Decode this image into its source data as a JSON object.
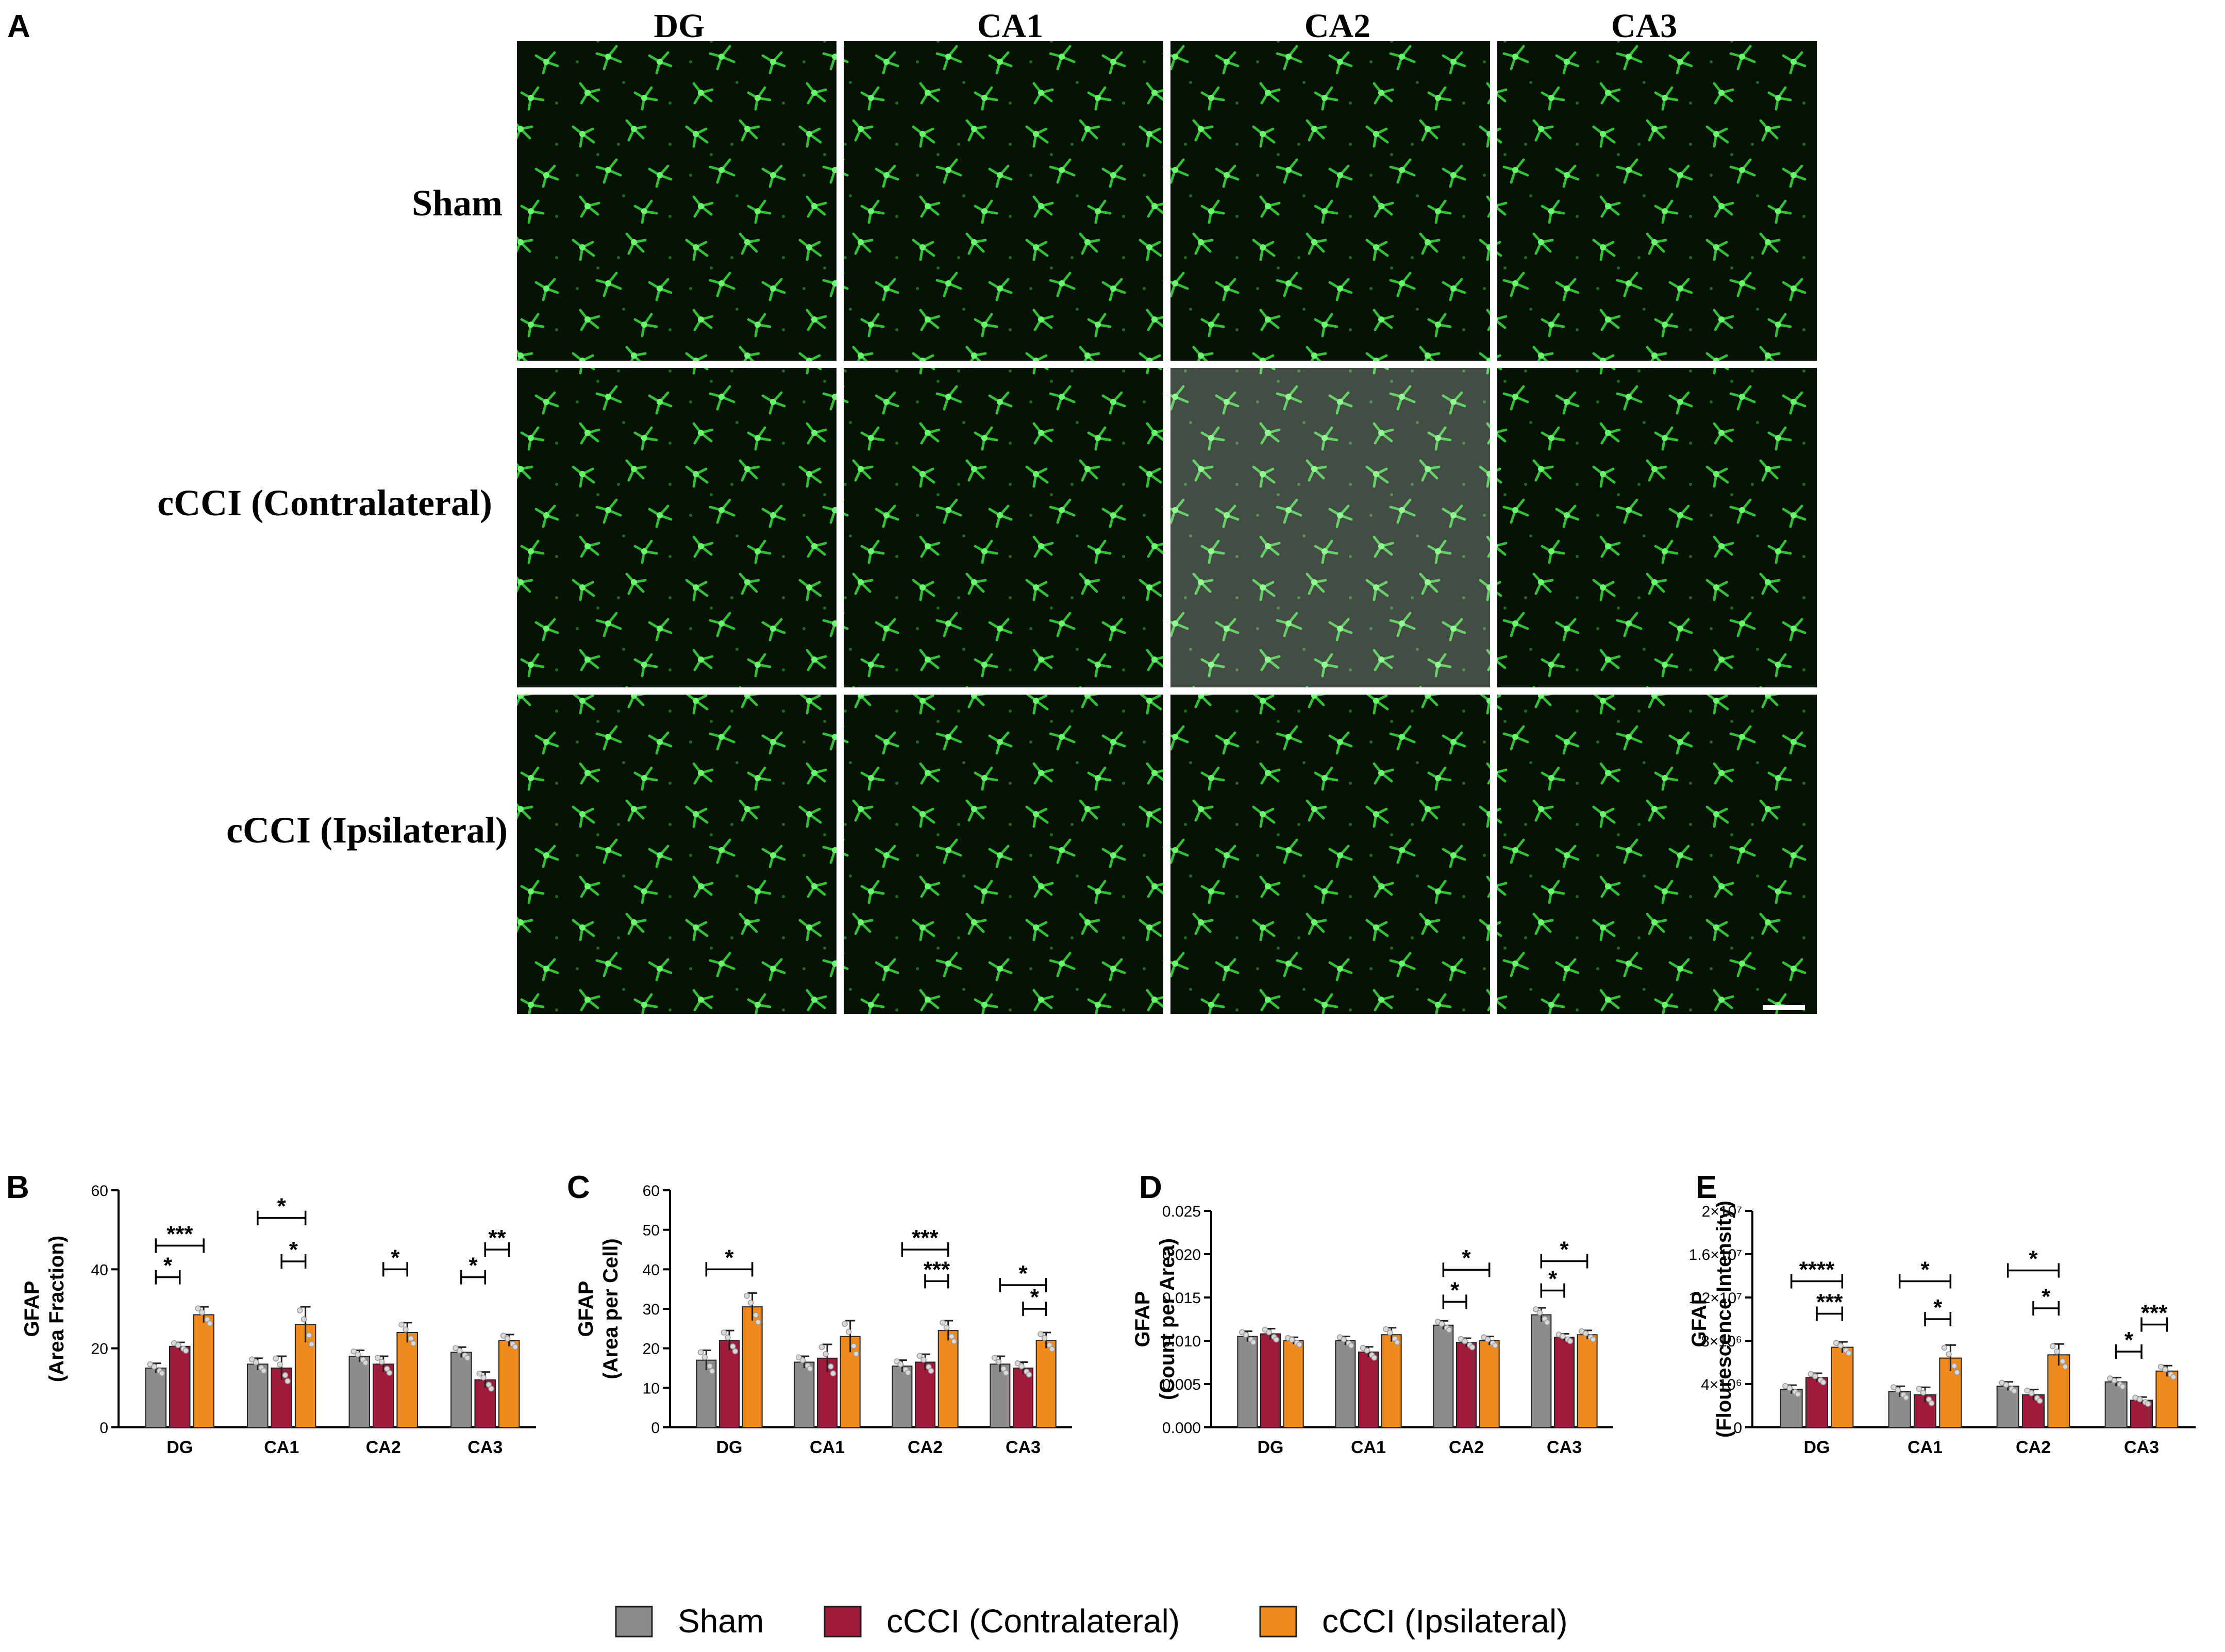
{
  "panel_a": {
    "letter": "A",
    "column_labels": [
      "DG",
      "CA1",
      "CA2",
      "CA3"
    ],
    "row_labels": [
      "Sham",
      "cCCI (Contralateral)",
      "cCCI (Ipsilateral)"
    ]
  },
  "legend": {
    "entries": [
      {
        "name": "Sham",
        "color": "#8c8c8c"
      },
      {
        "name": "cCCI (Contralateral)",
        "color": "#9e1b3c"
      },
      {
        "name": "cCCI (Ipsilateral)",
        "color": "#f08a1c"
      }
    ]
  },
  "colors": {
    "micrograph_bg": "#061206",
    "astrocyte": "#37d33a",
    "error_bar": "#222222"
  },
  "chart_data": [
    {
      "panel": "B",
      "type": "bar",
      "categories": [
        "DG",
        "CA1",
        "CA2",
        "CA3"
      ],
      "ylabel": "GFAP\n(Area Fraction)",
      "ylim": [
        0,
        60
      ],
      "yticks": [
        "0",
        "20",
        "40",
        "60"
      ],
      "series": [
        {
          "name": "Sham",
          "values": [
            15,
            16,
            18,
            19
          ],
          "errors": [
            1.2,
            1.5,
            1.5,
            1.3
          ]
        },
        {
          "name": "cCCI (Contralateral)",
          "values": [
            20.5,
            15,
            16,
            12
          ],
          "errors": [
            1.0,
            3.0,
            2.0,
            2.0
          ]
        },
        {
          "name": "cCCI (Ipsilateral)",
          "values": [
            28.5,
            26,
            24,
            22
          ],
          "errors": [
            2.0,
            4.5,
            2.5,
            1.5
          ]
        }
      ],
      "significance": [
        {
          "group": 0,
          "from": 0,
          "to": 1,
          "label": "*",
          "y": 38
        },
        {
          "group": 0,
          "from": 0,
          "to": 2,
          "label": "***",
          "y": 46
        },
        {
          "group": 1,
          "from": 0,
          "to": 2,
          "label": "*",
          "y": 53
        },
        {
          "group": 1,
          "from": 1,
          "to": 2,
          "label": "*",
          "y": 42
        },
        {
          "group": 2,
          "from": 1,
          "to": 2,
          "label": "*",
          "y": 40
        },
        {
          "group": 3,
          "from": 0,
          "to": 1,
          "label": "*",
          "y": 38
        },
        {
          "group": 3,
          "from": 1,
          "to": 2,
          "label": "**",
          "y": 45
        }
      ]
    },
    {
      "panel": "C",
      "type": "bar",
      "categories": [
        "DG",
        "CA1",
        "CA2",
        "CA3"
      ],
      "ylabel": "GFAP\n(Area per Cell)",
      "ylim": [
        0,
        60
      ],
      "yticks": [
        "0",
        "10",
        "20",
        "30",
        "40",
        "50",
        "60"
      ],
      "series": [
        {
          "name": "Sham",
          "values": [
            17,
            16.5,
            15.5,
            16
          ],
          "errors": [
            2.5,
            1.5,
            1.5,
            2.0
          ]
        },
        {
          "name": "cCCI (Contralateral)",
          "values": [
            22,
            17.5,
            16.5,
            15
          ],
          "errors": [
            2.5,
            3.5,
            2.0,
            1.5
          ]
        },
        {
          "name": "cCCI (Ipsilateral)",
          "values": [
            30.5,
            23,
            24.5,
            22
          ],
          "errors": [
            3.5,
            4.0,
            2.5,
            2.0
          ]
        }
      ],
      "significance": [
        {
          "group": 0,
          "from": 0,
          "to": 2,
          "label": "*",
          "y": 40
        },
        {
          "group": 2,
          "from": 0,
          "to": 2,
          "label": "***",
          "y": 45
        },
        {
          "group": 2,
          "from": 1,
          "to": 2,
          "label": "***",
          "y": 37
        },
        {
          "group": 3,
          "from": 0,
          "to": 2,
          "label": "*",
          "y": 36
        },
        {
          "group": 3,
          "from": 1,
          "to": 2,
          "label": "*",
          "y": 30
        }
      ]
    },
    {
      "panel": "D",
      "type": "bar",
      "categories": [
        "DG",
        "CA1",
        "CA2",
        "CA3"
      ],
      "ylabel": "GFAP\n(Count per Area)",
      "ylim": [
        0,
        0.025
      ],
      "yticks": [
        "0.000",
        "0.005",
        "0.010",
        "0.015",
        "0.020",
        "0.025"
      ],
      "series": [
        {
          "name": "Sham",
          "values": [
            0.0105,
            0.01,
            0.0118,
            0.013
          ],
          "errors": [
            0.0006,
            0.0005,
            0.0005,
            0.0008
          ]
        },
        {
          "name": "cCCI (Contralateral)",
          "values": [
            0.0108,
            0.0087,
            0.0098,
            0.0104
          ],
          "errors": [
            0.0006,
            0.0006,
            0.0005,
            0.0004
          ]
        },
        {
          "name": "cCCI (Ipsilateral)",
          "values": [
            0.01,
            0.0107,
            0.01,
            0.0107
          ],
          "errors": [
            0.0004,
            0.0008,
            0.0005,
            0.0005
          ]
        }
      ],
      "significance": [
        {
          "group": 2,
          "from": 0,
          "to": 1,
          "label": "*",
          "y": 0.0145
        },
        {
          "group": 2,
          "from": 0,
          "to": 2,
          "label": "*",
          "y": 0.0182
        },
        {
          "group": 3,
          "from": 0,
          "to": 1,
          "label": "*",
          "y": 0.0158
        },
        {
          "group": 3,
          "from": 0,
          "to": 2,
          "label": "*",
          "y": 0.0192
        }
      ]
    },
    {
      "panel": "E",
      "type": "bar",
      "categories": [
        "DG",
        "CA1",
        "CA2",
        "CA3"
      ],
      "ylabel": "GFAP\n(Flourescence Intensity)",
      "ylim": [
        0,
        20000000
      ],
      "yticks": [
        "0",
        "4×10⁶",
        "8×10⁶",
        "1.2×10⁷",
        "1.6×10⁷",
        "2×10⁷"
      ],
      "series": [
        {
          "name": "Sham",
          "values": [
            3500000,
            3300000,
            3800000,
            4200000
          ],
          "errors": [
            400000,
            500000,
            400000,
            400000
          ]
        },
        {
          "name": "cCCI (Contralateral)",
          "values": [
            4600000,
            3000000,
            3000000,
            2500000
          ],
          "errors": [
            400000,
            700000,
            500000,
            300000
          ]
        },
        {
          "name": "cCCI (Ipsilateral)",
          "values": [
            7400000,
            6400000,
            6700000,
            5200000
          ],
          "errors": [
            500000,
            1200000,
            1000000,
            500000
          ]
        }
      ],
      "significance": [
        {
          "group": 0,
          "from": 0,
          "to": 2,
          "label": "****",
          "y": 13500000
        },
        {
          "group": 0,
          "from": 1,
          "to": 2,
          "label": "***",
          "y": 10500000
        },
        {
          "group": 1,
          "from": 0,
          "to": 2,
          "label": "*",
          "y": 13500000
        },
        {
          "group": 1,
          "from": 1,
          "to": 2,
          "label": "*",
          "y": 10000000
        },
        {
          "group": 2,
          "from": 0,
          "to": 2,
          "label": "*",
          "y": 14500000
        },
        {
          "group": 2,
          "from": 1,
          "to": 2,
          "label": "*",
          "y": 11000000
        },
        {
          "group": 3,
          "from": 0,
          "to": 1,
          "label": "*",
          "y": 7000000
        },
        {
          "group": 3,
          "from": 1,
          "to": 2,
          "label": "***",
          "y": 9500000
        }
      ]
    }
  ]
}
